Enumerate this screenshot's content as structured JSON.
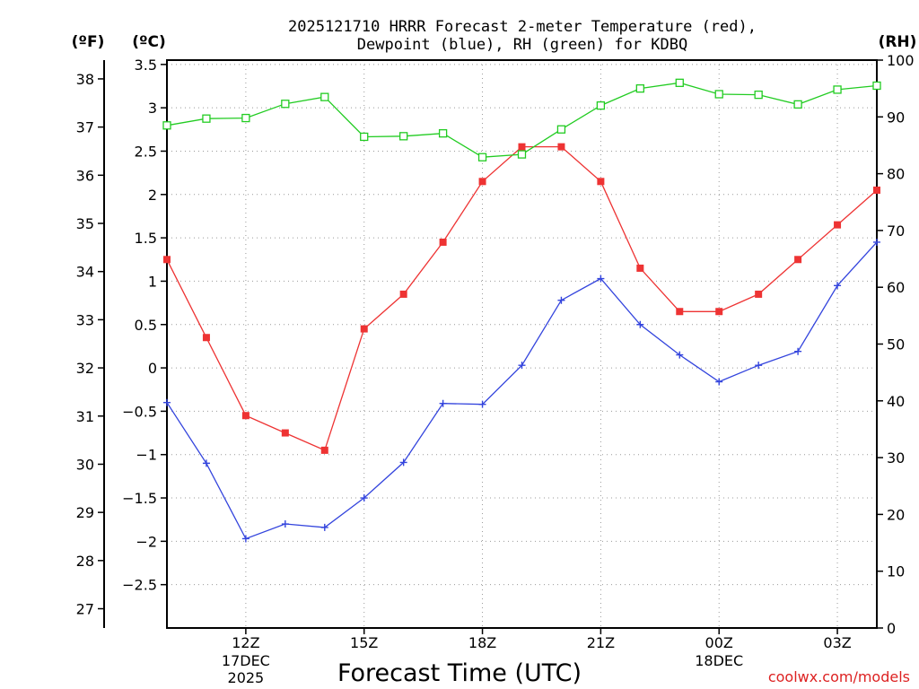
{
  "chart_data": {
    "type": "line",
    "title_line1": "2025121710 HRRR Forecast 2-meter Temperature (red),",
    "title_line2": "Dewpoint (blue), RH (green) for KDBQ",
    "units": {
      "fahrenheit": "(ºF)",
      "celsius": "(ºC)",
      "rh": "(RH)"
    },
    "xlabel": "Forecast Time (UTC)",
    "credit": "coolwx.com/models",
    "x_hours": [
      10,
      11,
      12,
      13,
      14,
      15,
      16,
      17,
      18,
      19,
      20,
      21,
      22,
      23,
      24,
      25,
      26,
      27,
      28
    ],
    "xlim": [
      10,
      28
    ],
    "x_ticks": [
      {
        "hour": 12,
        "label": "12Z",
        "sub1": "17DEC",
        "sub2": "2025"
      },
      {
        "hour": 15,
        "label": "15Z",
        "sub1": "",
        "sub2": ""
      },
      {
        "hour": 18,
        "label": "18Z",
        "sub1": "",
        "sub2": ""
      },
      {
        "hour": 21,
        "label": "21Z",
        "sub1": "",
        "sub2": ""
      },
      {
        "hour": 24,
        "label": "00Z",
        "sub1": "18DEC",
        "sub2": ""
      },
      {
        "hour": 27,
        "label": "03Z",
        "sub1": "",
        "sub2": ""
      }
    ],
    "celsius_axis": {
      "ylim": [
        -3.0,
        3.55
      ],
      "ticks": [
        3.5,
        3,
        2.5,
        2,
        1.5,
        1,
        0.5,
        0,
        -0.5,
        -1,
        -1.5,
        -2,
        -2.5
      ],
      "tick_labels": [
        "3.5",
        "3",
        "2.5",
        "2",
        "1.5",
        "1",
        "0.5",
        "0",
        "−0.5",
        "−1",
        "−1.5",
        "−2",
        "−2.5"
      ]
    },
    "fahrenheit_axis": {
      "ticks": [
        38,
        37,
        36,
        35,
        34,
        33,
        32,
        31,
        30,
        29,
        28,
        27
      ],
      "tick_labels": [
        "38",
        "37",
        "36",
        "35",
        "34",
        "33",
        "32",
        "31",
        "30",
        "29",
        "28",
        "27"
      ]
    },
    "rh_axis": {
      "ylim": [
        0,
        100
      ],
      "ticks": [
        100,
        90,
        80,
        70,
        60,
        50,
        40,
        30,
        20,
        10,
        0
      ],
      "tick_labels": [
        "100",
        "90",
        "80",
        "70",
        "60",
        "50",
        "40",
        "30",
        "20",
        "10",
        "0"
      ]
    },
    "grid": true,
    "series": [
      {
        "name": "Temperature",
        "axis": "celsius",
        "color": "#ee3333",
        "marker": "filled-square",
        "values": [
          1.25,
          0.35,
          -0.55,
          -0.75,
          -0.95,
          0.45,
          0.85,
          1.45,
          2.15,
          2.55,
          2.55,
          2.15,
          1.15,
          0.65,
          0.65,
          0.85,
          1.25,
          1.65,
          2.05
        ]
      },
      {
        "name": "Dewpoint",
        "axis": "celsius",
        "color": "#3344dd",
        "marker": "plus",
        "values": [
          -0.4,
          -1.1,
          -1.97,
          -1.8,
          -1.84,
          -1.5,
          -1.09,
          -0.41,
          -0.42,
          0.03,
          0.78,
          1.03,
          0.5,
          0.15,
          -0.16,
          0.03,
          0.19,
          0.95,
          1.45
        ]
      },
      {
        "name": "RH",
        "axis": "rh",
        "color": "#22cc22",
        "marker": "open-square",
        "values": [
          88.5,
          89.7,
          89.8,
          92.3,
          93.5,
          86.5,
          86.6,
          87.1,
          82.9,
          83.4,
          87.8,
          92.0,
          95.0,
          96.0,
          94.0,
          93.9,
          92.2,
          94.8,
          95.5
        ]
      }
    ]
  }
}
